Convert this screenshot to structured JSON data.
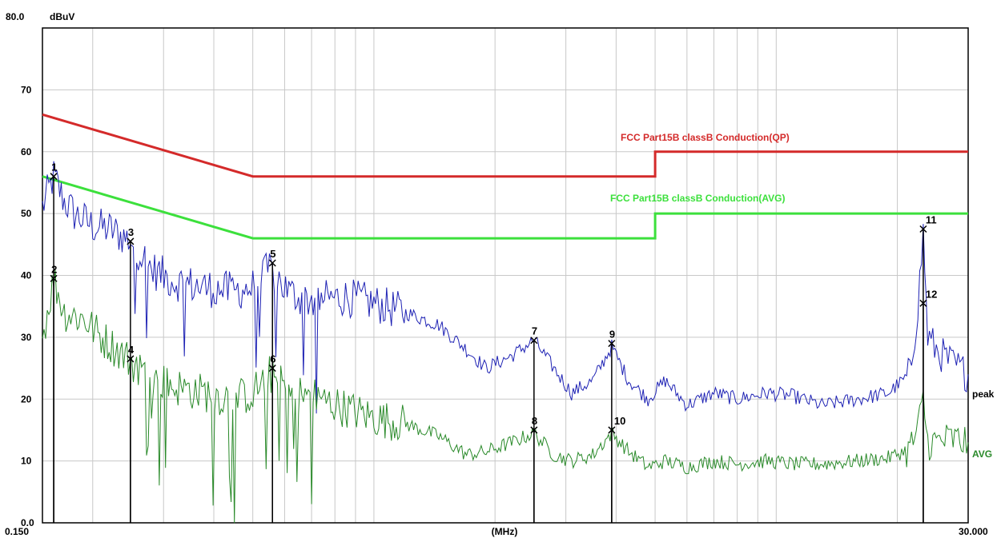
{
  "chart_data": {
    "type": "line",
    "ylabel": "dBuV",
    "xlabel": "(MHz)",
    "x_scale": "log",
    "xlim": [
      0.15,
      30
    ],
    "ylim": [
      0,
      80
    ],
    "grid": true,
    "y_ticks": [
      "0.0",
      "10",
      "20",
      "30",
      "40",
      "50",
      "60",
      "70",
      "80.0"
    ],
    "x_tick_labels": [
      "0.150",
      "(MHz)",
      "30.000"
    ],
    "colors": {
      "qp_limit": "#d42a2a",
      "avg_limit": "#3ce03c",
      "peak": "#1e22b4",
      "avg": "#2a8a2a",
      "grid": "#c8c8c8",
      "marker_line": "#000000"
    },
    "limits": [
      {
        "name": "FCC  Part15B classB Conduction(QP)",
        "points": [
          [
            0.15,
            66
          ],
          [
            0.5,
            56
          ],
          [
            5.0,
            56
          ],
          [
            5.0,
            60
          ],
          [
            30,
            60
          ]
        ]
      },
      {
        "name": "FCC  Part15B classB Conduction(AVG)",
        "points": [
          [
            0.15,
            56
          ],
          [
            0.5,
            46
          ],
          [
            5.0,
            46
          ],
          [
            5.0,
            50
          ],
          [
            30,
            50
          ]
        ]
      }
    ],
    "series": [
      {
        "name": "peak",
        "points": [
          [
            0.15,
            51
          ],
          [
            0.16,
            56
          ],
          [
            0.17,
            52
          ],
          [
            0.18,
            50
          ],
          [
            0.2,
            48
          ],
          [
            0.22,
            47.5
          ],
          [
            0.25,
            45.5
          ],
          [
            0.28,
            41
          ],
          [
            0.32,
            39
          ],
          [
            0.38,
            38
          ],
          [
            0.45,
            37.5
          ],
          [
            0.5,
            38
          ],
          [
            0.55,
            41
          ],
          [
            0.62,
            37
          ],
          [
            0.7,
            36
          ],
          [
            0.85,
            36.5
          ],
          [
            1.0,
            35.5
          ],
          [
            1.2,
            34
          ],
          [
            1.45,
            32
          ],
          [
            1.7,
            28
          ],
          [
            1.9,
            25
          ],
          [
            2.2,
            27
          ],
          [
            2.5,
            29.5
          ],
          [
            2.8,
            25
          ],
          [
            3.1,
            21
          ],
          [
            3.5,
            23
          ],
          [
            3.9,
            28.5
          ],
          [
            4.3,
            23
          ],
          [
            4.8,
            20
          ],
          [
            5.3,
            23
          ],
          [
            6.0,
            19
          ],
          [
            7.0,
            21
          ],
          [
            8.0,
            20
          ],
          [
            9.5,
            21
          ],
          [
            11,
            20.5
          ],
          [
            13,
            19
          ],
          [
            16,
            20
          ],
          [
            19,
            21
          ],
          [
            21.5,
            24
          ],
          [
            22.5,
            35
          ],
          [
            23.2,
            47
          ],
          [
            23.8,
            30
          ],
          [
            25,
            28
          ],
          [
            27,
            26
          ],
          [
            30,
            24
          ]
        ]
      },
      {
        "name": "AVG",
        "points": [
          [
            0.15,
            30
          ],
          [
            0.16,
            39.5
          ],
          [
            0.17,
            34
          ],
          [
            0.19,
            33
          ],
          [
            0.21,
            30
          ],
          [
            0.23,
            28
          ],
          [
            0.25,
            26
          ],
          [
            0.28,
            23.5
          ],
          [
            0.32,
            22
          ],
          [
            0.38,
            21
          ],
          [
            0.45,
            20
          ],
          [
            0.5,
            21
          ],
          [
            0.55,
            24
          ],
          [
            0.62,
            21
          ],
          [
            0.7,
            20.5
          ],
          [
            0.85,
            18.5
          ],
          [
            1.0,
            17
          ],
          [
            1.2,
            16
          ],
          [
            1.45,
            14
          ],
          [
            1.7,
            11
          ],
          [
            1.9,
            11.5
          ],
          [
            2.2,
            13
          ],
          [
            2.5,
            14.5
          ],
          [
            2.8,
            11
          ],
          [
            3.1,
            10
          ],
          [
            3.5,
            11
          ],
          [
            3.9,
            14.5
          ],
          [
            4.3,
            11.5
          ],
          [
            4.8,
            9
          ],
          [
            5.3,
            10
          ],
          [
            6.0,
            9
          ],
          [
            7.0,
            10
          ],
          [
            8.0,
            9.5
          ],
          [
            9.5,
            10
          ],
          [
            11,
            9.5
          ],
          [
            13,
            9.5
          ],
          [
            16,
            10
          ],
          [
            19,
            10.5
          ],
          [
            21.5,
            12
          ],
          [
            22.5,
            15
          ],
          [
            23.2,
            20
          ],
          [
            23.8,
            13
          ],
          [
            25,
            13
          ],
          [
            27,
            13.5
          ],
          [
            30,
            13
          ]
        ]
      }
    ],
    "markers": [
      {
        "label": "1",
        "x": 0.16,
        "y": 56
      },
      {
        "label": "2",
        "x": 0.16,
        "y": 39.5
      },
      {
        "label": "3",
        "x": 0.2482,
        "y": 45.5
      },
      {
        "label": "4",
        "x": 0.2482,
        "y": 26.5
      },
      {
        "label": "5",
        "x": 0.5595,
        "y": 42
      },
      {
        "label": "6",
        "x": 0.5595,
        "y": 25
      },
      {
        "label": "7",
        "x": 2.5,
        "y": 29.5
      },
      {
        "label": "8",
        "x": 2.5,
        "y": 15
      },
      {
        "label": "9",
        "x": 3.9,
        "y": 29
      },
      {
        "label": "10",
        "x": 3.9,
        "y": 15
      },
      {
        "label": "11",
        "x": 23.2,
        "y": 47.5
      },
      {
        "label": "12",
        "x": 23.2,
        "y": 35.5
      }
    ],
    "end_labels": [
      "peak",
      "AVG"
    ]
  }
}
